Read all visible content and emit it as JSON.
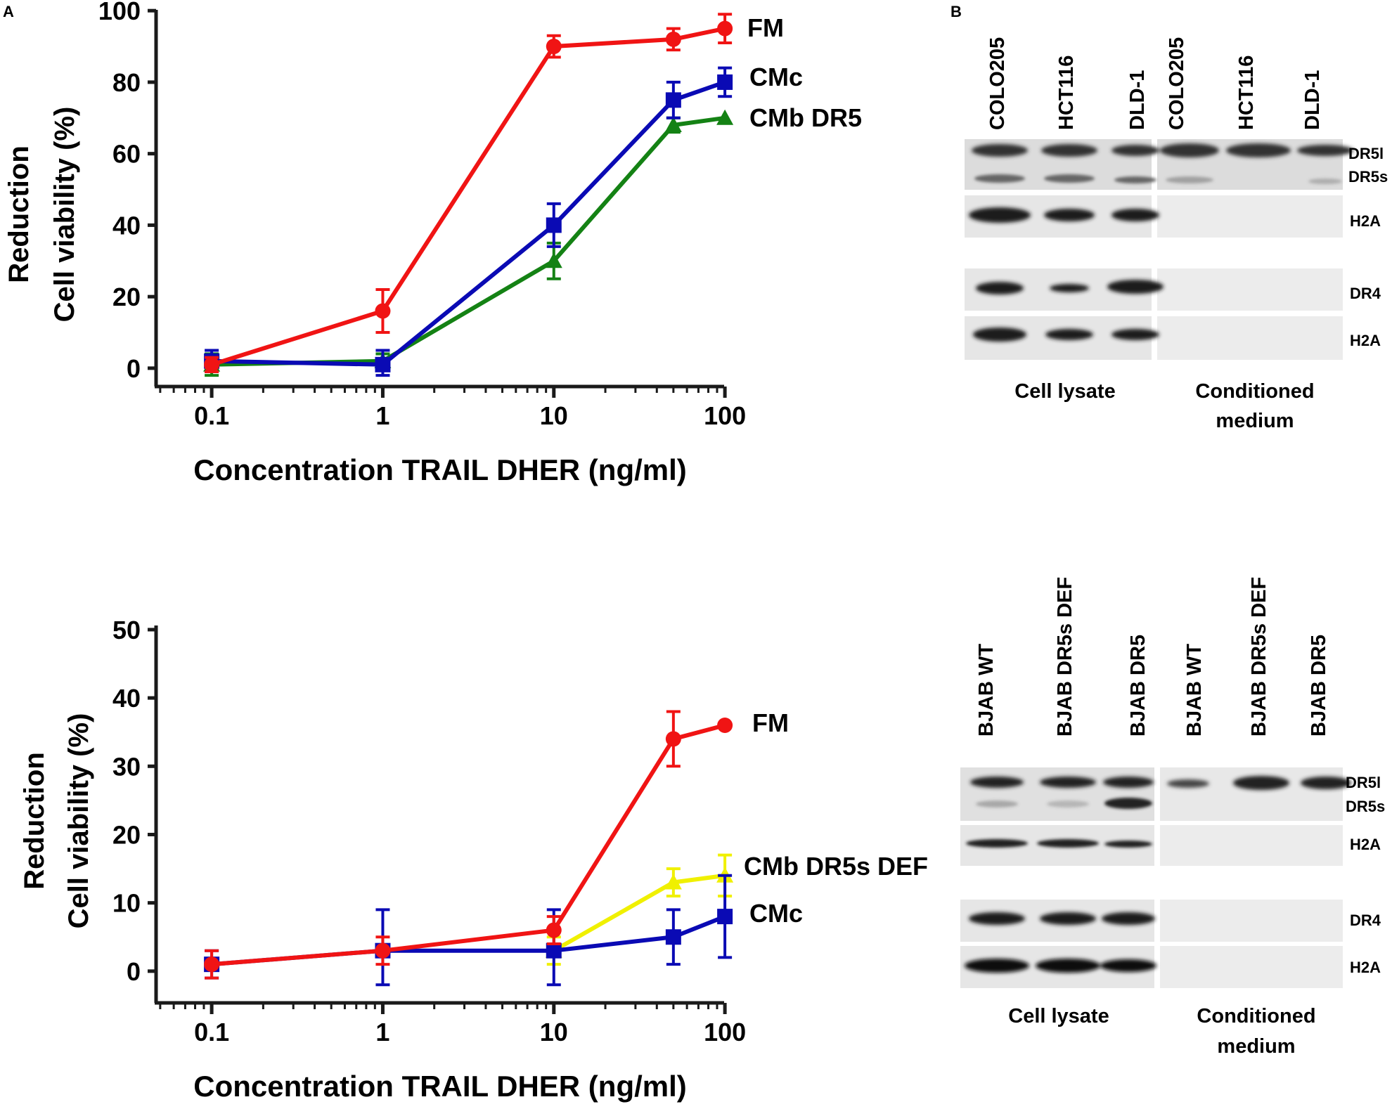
{
  "panel_a_label": "A",
  "panel_b_label": "B",
  "colors": {
    "FM": "#f01414",
    "CMc": "#0a0ab4",
    "CMb DR5": "#148214",
    "CMb DR5s DEF": "#f0f000",
    "axis": "#1a1a1a"
  },
  "chart_data": [
    {
      "type": "line",
      "xscale": "log",
      "xlim": [
        0.05,
        100
      ],
      "ylim": [
        0,
        100
      ],
      "x_ticks": [
        0.1,
        1,
        10,
        100
      ],
      "x_tick_labels": [
        "0.1",
        "1",
        "10",
        "100"
      ],
      "y_ticks": [
        0,
        20,
        40,
        60,
        80,
        100
      ],
      "y_tick_labels": [
        "0",
        "20",
        "40",
        "60",
        "80",
        "100"
      ],
      "ylabel_line1": "Reduction",
      "ylabel_line2": "Cell viability (%)",
      "xlabel": "Concentration TRAIL DHER (ng/ml)",
      "series": [
        {
          "name": "CMb DR5",
          "marker": "triangle",
          "color": "#148214",
          "x": [
            0.1,
            1,
            10,
            50,
            100
          ],
          "y": [
            1,
            2,
            30,
            68,
            70
          ],
          "err": [
            3,
            2,
            5,
            2,
            0
          ]
        },
        {
          "name": "CMc",
          "marker": "square",
          "color": "#0a0ab4",
          "x": [
            0.1,
            1,
            10,
            50,
            100
          ],
          "y": [
            2,
            1,
            40,
            75,
            80
          ],
          "err": [
            3,
            4,
            6,
            5,
            4
          ]
        },
        {
          "name": "FM",
          "marker": "circle",
          "color": "#f01414",
          "x": [
            0.1,
            1,
            10,
            50,
            100
          ],
          "y": [
            1,
            16,
            90,
            92,
            95
          ],
          "err": [
            2,
            6,
            3,
            3,
            4
          ]
        }
      ],
      "legend": [
        {
          "label": "FM",
          "series": "FM"
        },
        {
          "label": "CMc",
          "series": "CMc"
        },
        {
          "label": "CMb DR5",
          "series": "CMb DR5"
        }
      ]
    },
    {
      "type": "line",
      "xscale": "log",
      "xlim": [
        0.05,
        100
      ],
      "ylim": [
        0,
        50
      ],
      "x_ticks": [
        0.1,
        1,
        10,
        100
      ],
      "x_tick_labels": [
        "0.1",
        "1",
        "10",
        "100"
      ],
      "y_ticks": [
        0,
        10,
        20,
        30,
        40,
        50
      ],
      "y_tick_labels": [
        "0",
        "10",
        "20",
        "30",
        "40",
        "50"
      ],
      "ylabel_line1": "Reduction",
      "ylabel_line2": "Cell viability (%)",
      "xlabel": "Concentration TRAIL DHER (ng/ml)",
      "series": [
        {
          "name": "CMb DR5s DEF",
          "marker": "triangle",
          "color": "#f0f000",
          "x": [
            10,
            50,
            100
          ],
          "y": [
            3,
            13,
            14
          ],
          "err": [
            2,
            2,
            3
          ]
        },
        {
          "name": "CMc",
          "marker": "square",
          "color": "#0a0ab4",
          "x": [
            0.1,
            1,
            10,
            50,
            100
          ],
          "y": [
            1,
            3,
            3,
            5,
            8
          ],
          "err": [
            2,
            6,
            6,
            4,
            6
          ]
        },
        {
          "name": "FM",
          "marker": "circle",
          "color": "#f01414",
          "x": [
            0.1,
            1,
            10,
            50,
            100
          ],
          "y": [
            1,
            3,
            6,
            34,
            36
          ],
          "err": [
            2,
            2,
            2,
            4,
            0
          ]
        }
      ],
      "legend": [
        {
          "label": "FM",
          "series": "FM"
        },
        {
          "label": "CMb DR5s DEF",
          "series": "CMb DR5s DEF"
        },
        {
          "label": "CMc",
          "series": "CMc"
        }
      ]
    }
  ],
  "blot_top": {
    "lanes": [
      "COLO205",
      "HCT116",
      "DLD-1",
      "COLO205",
      "HCT116",
      "DLD-1"
    ],
    "band_labels": [
      "DR5l",
      "DR5s",
      "H2A",
      "DR4",
      "H2A"
    ],
    "group_lysate": "Cell lysate",
    "group_medium_line1": "Conditioned",
    "group_medium_line2": "medium"
  },
  "blot_bottom": {
    "lanes": [
      "BJAB WT",
      "BJAB DR5s DEF",
      "BJAB DR5",
      "BJAB WT",
      "BJAB DR5s DEF",
      "BJAB DR5"
    ],
    "band_labels": [
      "DR5l",
      "DR5s",
      "H2A",
      "DR4",
      "H2A"
    ],
    "group_lysate": "Cell lysate",
    "group_medium_line1": "Conditioned",
    "group_medium_line2": "medium"
  }
}
